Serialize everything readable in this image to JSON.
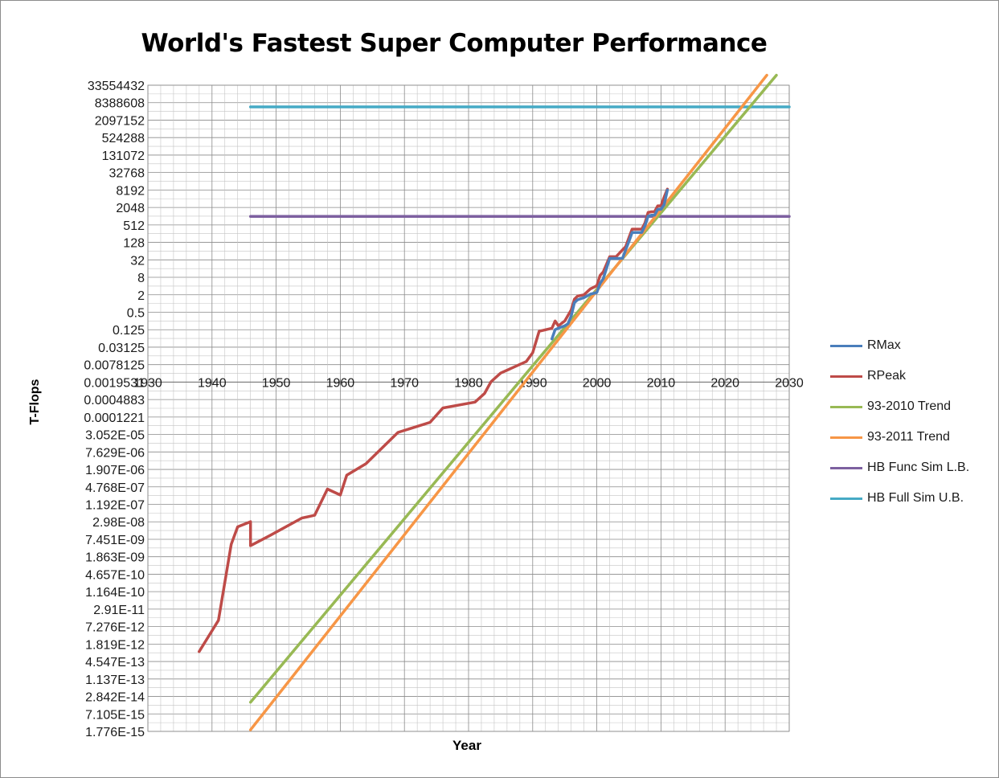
{
  "chart_data": {
    "type": "line",
    "title": "World's Fastest Super Computer Performance",
    "xlabel": "Year",
    "ylabel": "T-Flops",
    "xlim": [
      1930,
      2030
    ],
    "x_ticks": [
      "1930",
      "1940",
      "1950",
      "1960",
      "1970",
      "1980",
      "1990",
      "2000",
      "2010",
      "2020",
      "2030"
    ],
    "yscale": "log2",
    "ylim": [
      1.776e-15,
      33554432
    ],
    "y_ticks": [
      "1.776E-15",
      "7.105E-15",
      "2.842E-14",
      "1.137E-13",
      "4.547E-13",
      "1.819E-12",
      "7.276E-12",
      "2.91E-11",
      "1.164E-10",
      "4.657E-10",
      "1.863E-09",
      "7.451E-09",
      "2.98E-08",
      "1.192E-07",
      "4.768E-07",
      "1.907E-06",
      "7.629E-06",
      "3.052E-05",
      "0.0001221",
      "0.0004883",
      "0.0019531",
      "0.0078125",
      "0.03125",
      "0.125",
      "0.5",
      "2",
      "8",
      "32",
      "128",
      "512",
      "2048",
      "8192",
      "32768",
      "131072",
      "524288",
      "2097152",
      "8388608",
      "33554432"
    ],
    "x_axis_crosses_at": 0.0019531,
    "grid": true,
    "legend_position": "right",
    "series": [
      {
        "name": "RMax",
        "color": "#4a7ebb",
        "points": [
          [
            1993.0,
            0.06
          ],
          [
            1993.5,
            0.125
          ],
          [
            1994.0,
            0.14
          ],
          [
            1995.0,
            0.17
          ],
          [
            1995.5,
            0.2
          ],
          [
            1996.0,
            0.37
          ],
          [
            1996.5,
            1.07
          ],
          [
            1997.0,
            1.34
          ],
          [
            1998.0,
            1.6
          ],
          [
            1999.0,
            2.1
          ],
          [
            2000.0,
            2.4
          ],
          [
            2000.5,
            4.9
          ],
          [
            2001.0,
            7.2
          ],
          [
            2002.0,
            35.9
          ],
          [
            2003.0,
            35.9
          ],
          [
            2004.0,
            36.0
          ],
          [
            2004.5,
            70.7
          ],
          [
            2005.0,
            136.8
          ],
          [
            2005.5,
            280.6
          ],
          [
            2006.0,
            280.6
          ],
          [
            2007.0,
            280.6
          ],
          [
            2007.5,
            478.2
          ],
          [
            2008.0,
            1026
          ],
          [
            2008.5,
            1105
          ],
          [
            2009.0,
            1105
          ],
          [
            2009.5,
            1759
          ],
          [
            2010.0,
            1759
          ],
          [
            2010.5,
            2566
          ],
          [
            2011.0,
            8162
          ]
        ]
      },
      {
        "name": "RPeak",
        "color": "#be4b48",
        "points": [
          [
            1938.0,
            1e-12
          ],
          [
            1941.0,
            1.2e-11
          ],
          [
            1943.0,
            5e-09
          ],
          [
            1944.0,
            2e-08
          ],
          [
            1946.0,
            3e-08
          ],
          [
            1946.0,
            4.5e-09
          ],
          [
            1949.0,
            1e-08
          ],
          [
            1954.0,
            4e-08
          ],
          [
            1956.0,
            5e-08
          ],
          [
            1958.0,
            4e-07
          ],
          [
            1960.0,
            2.5e-07
          ],
          [
            1961.0,
            1.2e-06
          ],
          [
            1964.0,
            3e-06
          ],
          [
            1969.0,
            3.6e-05
          ],
          [
            1974.0,
            8e-05
          ],
          [
            1976.0,
            0.00025
          ],
          [
            1981.0,
            0.0004
          ],
          [
            1982.5,
            0.0008
          ],
          [
            1983.5,
            0.002
          ],
          [
            1985.0,
            0.004
          ],
          [
            1989.0,
            0.01
          ],
          [
            1990.0,
            0.02
          ],
          [
            1991.0,
            0.11
          ],
          [
            1993.0,
            0.14
          ],
          [
            1993.5,
            0.25
          ],
          [
            1994.0,
            0.17
          ],
          [
            1995.0,
            0.25
          ],
          [
            1996.0,
            0.6
          ],
          [
            1996.5,
            1.4
          ],
          [
            1997.0,
            1.8
          ],
          [
            1998.0,
            2.0
          ],
          [
            1999.0,
            3.2
          ],
          [
            2000.0,
            4.1
          ],
          [
            2000.5,
            9.2
          ],
          [
            2001.0,
            12.3
          ],
          [
            2002.0,
            40.9
          ],
          [
            2003.0,
            40.9
          ],
          [
            2004.0,
            70.7
          ],
          [
            2004.5,
            91.7
          ],
          [
            2005.0,
            183.5
          ],
          [
            2005.5,
            367
          ],
          [
            2006.0,
            367
          ],
          [
            2007.0,
            367
          ],
          [
            2007.5,
            596
          ],
          [
            2008.0,
            1376
          ],
          [
            2008.5,
            1456
          ],
          [
            2009.0,
            1456
          ],
          [
            2009.5,
            2331
          ],
          [
            2010.0,
            2331
          ],
          [
            2010.5,
            4701
          ],
          [
            2011.0,
            8774
          ]
        ]
      },
      {
        "name": "93-2010 Trend",
        "color": "#98b954",
        "points": [
          [
            1946.0,
            1.8e-14
          ],
          [
            2028.0,
            74000000
          ]
        ]
      },
      {
        "name": "93-2011 Trend",
        "color": "#f79646",
        "points": [
          [
            1946.0,
            2e-15
          ],
          [
            2026.5,
            74000000
          ]
        ]
      },
      {
        "name": "HB Func Sim L.B.",
        "color": "#7d60a0",
        "points": [
          [
            1946.0,
            1000
          ],
          [
            2030.0,
            1000
          ]
        ]
      },
      {
        "name": "HB Full Sim U.B.",
        "color": "#46aac5",
        "points": [
          [
            1946.0,
            6000000
          ],
          [
            2030.0,
            6000000
          ]
        ]
      }
    ]
  }
}
